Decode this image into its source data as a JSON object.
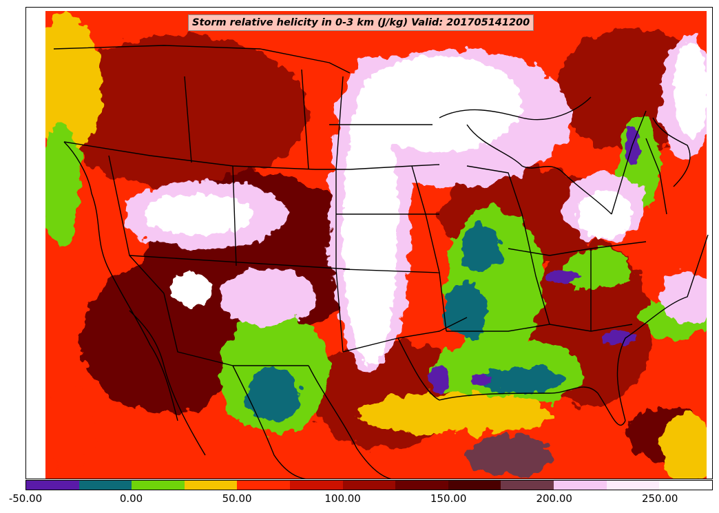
{
  "map": {
    "title": "Storm relative helicity in 0-3 km (J/kg) Valid: 201705141200"
  },
  "colorbar": {
    "min": -50,
    "max": 275,
    "step": 25,
    "colors": [
      "#5a1aa8",
      "#0d6b78",
      "#6fd40a",
      "#f5c400",
      "#ff2a00",
      "#cc1100",
      "#9a0800",
      "#6a0000",
      "#4a0000",
      "#6e3848",
      "#f6c8f4",
      "#fcecfb",
      "#ffffff"
    ],
    "tick_values": [
      -50,
      0,
      50,
      100,
      150,
      200,
      250
    ],
    "tick_labels": [
      "-50.00",
      "0.00",
      "50.00",
      "100.00",
      "150.00",
      "200.00",
      "250.00"
    ]
  }
}
